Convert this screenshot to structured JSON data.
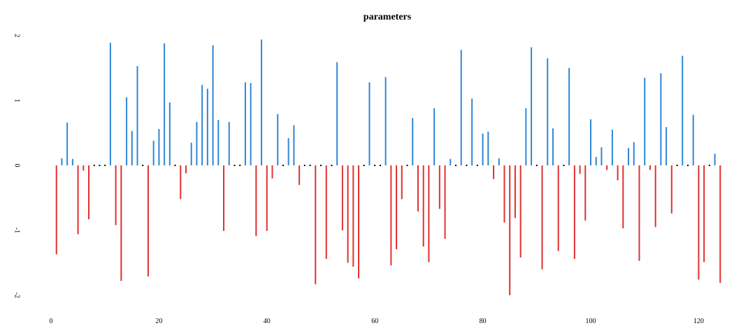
{
  "chart_data": {
    "type": "bar",
    "title": "parameters",
    "xlabel": "",
    "ylabel": "",
    "xlim": [
      0,
      124
    ],
    "ylim": [
      -2,
      2
    ],
    "xticks": [
      0,
      20,
      40,
      60,
      80,
      100,
      120
    ],
    "yticks": [
      -2,
      -1,
      0,
      1,
      2
    ],
    "grid": false,
    "colors": {
      "positive": "#2f86d6",
      "negative": "#e03030",
      "zero": "#000000"
    },
    "x": [
      1,
      2,
      3,
      4,
      5,
      6,
      7,
      8,
      9,
      10,
      11,
      12,
      13,
      14,
      15,
      16,
      17,
      18,
      19,
      20,
      21,
      22,
      23,
      24,
      25,
      26,
      27,
      28,
      29,
      30,
      31,
      32,
      33,
      34,
      35,
      36,
      37,
      38,
      39,
      40,
      41,
      42,
      43,
      44,
      45,
      46,
      47,
      48,
      49,
      50,
      51,
      52,
      53,
      54,
      55,
      56,
      57,
      58,
      59,
      60,
      61,
      62,
      63,
      64,
      65,
      66,
      67,
      68,
      69,
      70,
      71,
      72,
      73,
      74,
      75,
      76,
      77,
      78,
      79,
      80,
      81,
      82,
      83,
      84,
      85,
      86,
      87,
      88,
      89,
      90,
      91,
      92,
      93,
      94,
      95,
      96,
      97,
      98,
      99,
      100,
      101,
      102,
      103,
      104,
      105,
      106,
      107,
      108,
      109,
      110,
      111,
      112,
      113,
      114,
      115,
      116,
      117,
      118,
      119,
      120,
      121,
      122,
      123,
      124
    ],
    "values": [
      -1.37,
      0.11,
      0.66,
      0.1,
      -1.06,
      -0.08,
      -0.83,
      0,
      0,
      0,
      1.89,
      -0.92,
      -1.78,
      1.05,
      0.53,
      1.53,
      0,
      -1.71,
      0.38,
      0.56,
      1.88,
      0.97,
      0,
      -0.52,
      -0.12,
      0.35,
      0.67,
      1.24,
      1.18,
      1.85,
      0.7,
      -1.01,
      0.67,
      0,
      0,
      1.28,
      1.27,
      -1.09,
      1.94,
      -1.01,
      -0.2,
      0.79,
      0,
      0.42,
      0.62,
      -0.3,
      0,
      0,
      -1.83,
      0,
      -1.44,
      0,
      1.59,
      -1,
      -1.5,
      -1.56,
      -1.74,
      0,
      1.28,
      0,
      0,
      1.36,
      -1.54,
      -1.29,
      -0.52,
      0,
      0.73,
      -0.71,
      -1.25,
      -1.49,
      0.88,
      -0.67,
      -1.13,
      0.1,
      0,
      1.78,
      0,
      1.03,
      0,
      0.49,
      0.52,
      -0.21,
      0.11,
      -0.88,
      -2.0,
      -0.81,
      -1.42,
      0.88,
      1.82,
      0,
      -1.6,
      1.65,
      0.57,
      -1.32,
      0,
      1.5,
      -1.44,
      -0.13,
      -0.85,
      0.71,
      0.13,
      0.28,
      -0.07,
      0.55,
      -0.23,
      -0.97,
      0.27,
      0.36,
      -1.47,
      1.35,
      -0.07,
      -0.95,
      1.42,
      0.59,
      -0.74,
      0,
      1.69,
      0,
      0.78,
      -1.76,
      -1.49,
      0,
      0.18,
      -1.81
    ]
  }
}
